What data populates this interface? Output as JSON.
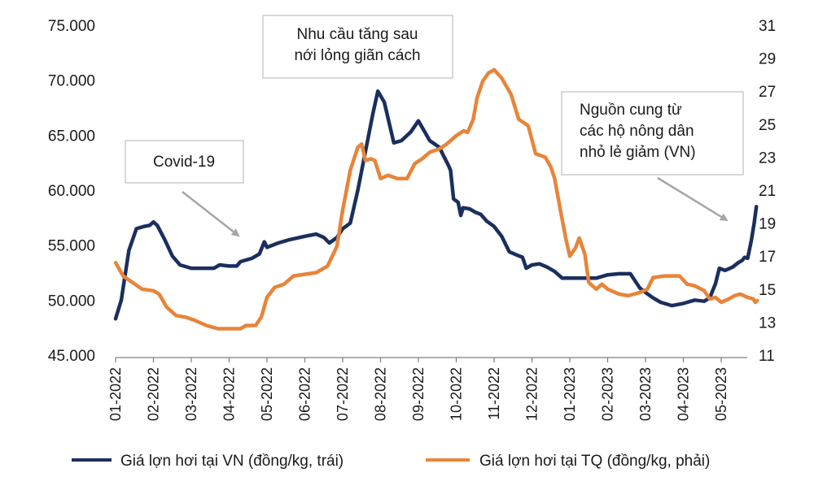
{
  "chart_data": {
    "type": "line",
    "title": "",
    "colors": {
      "vn": "#1b2f5e",
      "tq": "#e8843a",
      "annotation_border": "#bfbfbf",
      "arrow": "#a6a6a6"
    },
    "y_left": {
      "ylim": [
        45000,
        75000
      ],
      "ticks": [
        "75.000",
        "70.000",
        "65.000",
        "60.000",
        "55.000",
        "50.000",
        "45.000"
      ],
      "tick_values": [
        75000,
        70000,
        65000,
        60000,
        55000,
        50000,
        45000
      ]
    },
    "y_right": {
      "ylim": [
        11,
        31
      ],
      "ticks": [
        "31",
        "29",
        "27",
        "25",
        "23",
        "21",
        "19",
        "17",
        "15",
        "13",
        "11"
      ],
      "tick_values": [
        31,
        29,
        27,
        25,
        23,
        21,
        19,
        17,
        15,
        13,
        11
      ]
    },
    "x_ticks": [
      "01-2022",
      "02-2022",
      "03-2022",
      "04-2022",
      "05-2022",
      "06-2022",
      "07-2022",
      "08-2022",
      "09-2022",
      "10-2022",
      "11-2022",
      "12-2022",
      "01-2023",
      "02-2023",
      "03-2023",
      "04-2023",
      "05-2023"
    ],
    "series": [
      {
        "name": "Giá lợn hơi tại VN (đồng/kg, trái)",
        "axis": "left",
        "points": [
          [
            0,
            48300
          ],
          [
            0.15,
            50000
          ],
          [
            0.35,
            54500
          ],
          [
            0.55,
            56500
          ],
          [
            0.75,
            56700
          ],
          [
            0.9,
            56800
          ],
          [
            1.0,
            57100
          ],
          [
            1.1,
            56800
          ],
          [
            1.3,
            55500
          ],
          [
            1.5,
            54000
          ],
          [
            1.7,
            53200
          ],
          [
            2.0,
            52900
          ],
          [
            2.3,
            52900
          ],
          [
            2.6,
            52900
          ],
          [
            2.75,
            53200
          ],
          [
            3.0,
            53100
          ],
          [
            3.2,
            53100
          ],
          [
            3.3,
            53500
          ],
          [
            3.6,
            53800
          ],
          [
            3.8,
            54200
          ],
          [
            3.93,
            55300
          ],
          [
            4.0,
            54800
          ],
          [
            4.3,
            55200
          ],
          [
            4.6,
            55500
          ],
          [
            5.0,
            55800
          ],
          [
            5.3,
            56000
          ],
          [
            5.5,
            55700
          ],
          [
            5.65,
            55200
          ],
          [
            5.85,
            55700
          ],
          [
            6.0,
            56500
          ],
          [
            6.2,
            57000
          ],
          [
            6.4,
            60000
          ],
          [
            6.6,
            63500
          ],
          [
            6.8,
            67000
          ],
          [
            6.93,
            69000
          ],
          [
            7.1,
            68000
          ],
          [
            7.35,
            64300
          ],
          [
            7.55,
            64500
          ],
          [
            7.8,
            65300
          ],
          [
            8.0,
            66300
          ],
          [
            8.3,
            64500
          ],
          [
            8.55,
            63900
          ],
          [
            8.8,
            62200
          ],
          [
            8.85,
            61800
          ],
          [
            8.93,
            59200
          ],
          [
            9.05,
            58900
          ],
          [
            9.12,
            57700
          ],
          [
            9.18,
            58400
          ],
          [
            9.35,
            58300
          ],
          [
            9.5,
            58000
          ],
          [
            9.65,
            57800
          ],
          [
            9.8,
            57200
          ],
          [
            10.0,
            56700
          ],
          [
            10.2,
            55800
          ],
          [
            10.4,
            54400
          ],
          [
            10.6,
            54100
          ],
          [
            10.75,
            53900
          ],
          [
            10.85,
            52900
          ],
          [
            11.0,
            53200
          ],
          [
            11.2,
            53300
          ],
          [
            11.4,
            53000
          ],
          [
            11.6,
            52600
          ],
          [
            11.8,
            52000
          ],
          [
            12.0,
            52000
          ],
          [
            12.4,
            52000
          ],
          [
            12.7,
            52000
          ],
          [
            13.0,
            52300
          ],
          [
            13.3,
            52400
          ],
          [
            13.6,
            52400
          ],
          [
            13.85,
            51100
          ],
          [
            14.0,
            50700
          ],
          [
            14.2,
            50200
          ],
          [
            14.4,
            49800
          ],
          [
            14.7,
            49500
          ],
          [
            15.0,
            49700
          ],
          [
            15.3,
            50000
          ],
          [
            15.55,
            49900
          ],
          [
            15.7,
            50200
          ],
          [
            15.85,
            51500
          ],
          [
            15.95,
            52900
          ],
          [
            16.1,
            52700
          ],
          [
            16.3,
            53000
          ],
          [
            16.45,
            53400
          ],
          [
            16.55,
            53600
          ],
          [
            16.62,
            53900
          ],
          [
            16.7,
            53800
          ],
          [
            16.8,
            55500
          ],
          [
            16.87,
            57000
          ],
          [
            16.93,
            58500
          ]
        ]
      },
      {
        "name": "Giá lợn hơi tại TQ (đồng/kg, phải)",
        "axis": "right",
        "points": [
          [
            0,
            16.6
          ],
          [
            0.2,
            15.8
          ],
          [
            0.45,
            15.4
          ],
          [
            0.7,
            15.0
          ],
          [
            1.0,
            14.9
          ],
          [
            1.15,
            14.7
          ],
          [
            1.35,
            13.9
          ],
          [
            1.6,
            13.4
          ],
          [
            1.85,
            13.3
          ],
          [
            2.1,
            13.1
          ],
          [
            2.4,
            12.8
          ],
          [
            2.7,
            12.6
          ],
          [
            3.0,
            12.6
          ],
          [
            3.3,
            12.6
          ],
          [
            3.45,
            12.8
          ],
          [
            3.7,
            12.8
          ],
          [
            3.85,
            13.3
          ],
          [
            4.0,
            14.5
          ],
          [
            4.2,
            15.1
          ],
          [
            4.45,
            15.3
          ],
          [
            4.7,
            15.8
          ],
          [
            5.0,
            15.9
          ],
          [
            5.3,
            16.0
          ],
          [
            5.6,
            16.4
          ],
          [
            5.85,
            17.6
          ],
          [
            6.0,
            19.8
          ],
          [
            6.2,
            22.2
          ],
          [
            6.4,
            23.6
          ],
          [
            6.5,
            23.8
          ],
          [
            6.6,
            22.8
          ],
          [
            6.75,
            22.9
          ],
          [
            6.85,
            22.8
          ],
          [
            7.0,
            21.7
          ],
          [
            7.2,
            21.9
          ],
          [
            7.45,
            21.7
          ],
          [
            7.7,
            21.7
          ],
          [
            7.9,
            22.6
          ],
          [
            8.1,
            22.9
          ],
          [
            8.3,
            23.3
          ],
          [
            8.55,
            23.5
          ],
          [
            8.75,
            23.8
          ],
          [
            9.0,
            24.3
          ],
          [
            9.2,
            24.6
          ],
          [
            9.3,
            24.5
          ],
          [
            9.45,
            25.3
          ],
          [
            9.55,
            26.6
          ],
          [
            9.7,
            27.6
          ],
          [
            9.85,
            28.1
          ],
          [
            10.0,
            28.3
          ],
          [
            10.2,
            27.8
          ],
          [
            10.45,
            26.8
          ],
          [
            10.65,
            25.3
          ],
          [
            10.9,
            24.9
          ],
          [
            11.1,
            23.2
          ],
          [
            11.35,
            23.0
          ],
          [
            11.5,
            22.4
          ],
          [
            11.6,
            21.7
          ],
          [
            11.75,
            19.8
          ],
          [
            11.9,
            18.0
          ],
          [
            12.0,
            17.0
          ],
          [
            12.15,
            17.5
          ],
          [
            12.25,
            18.1
          ],
          [
            12.4,
            17.1
          ],
          [
            12.5,
            15.4
          ],
          [
            12.7,
            15.0
          ],
          [
            12.85,
            15.3
          ],
          [
            13.0,
            15.0
          ],
          [
            13.3,
            14.7
          ],
          [
            13.55,
            14.6
          ],
          [
            13.7,
            14.7
          ],
          [
            13.85,
            14.8
          ],
          [
            14.05,
            15.0
          ],
          [
            14.2,
            15.7
          ],
          [
            14.5,
            15.8
          ],
          [
            14.7,
            15.8
          ],
          [
            14.9,
            15.8
          ],
          [
            15.1,
            15.3
          ],
          [
            15.3,
            15.2
          ],
          [
            15.55,
            14.9
          ],
          [
            15.7,
            14.4
          ],
          [
            15.85,
            14.5
          ],
          [
            16.0,
            14.2
          ],
          [
            16.2,
            14.4
          ],
          [
            16.35,
            14.6
          ],
          [
            16.5,
            14.7
          ],
          [
            16.7,
            14.5
          ],
          [
            16.85,
            14.4
          ],
          [
            16.9,
            14.2
          ],
          [
            16.95,
            14.3
          ]
        ]
      }
    ],
    "annotations": [
      {
        "text": "Covid-19",
        "lines": [
          "Covid-19"
        ]
      },
      {
        "text": "Nhu cầu tăng sau nới lỏng giãn cách",
        "lines": [
          "Nhu cầu tăng sau",
          "nới lỏng giãn cách"
        ]
      },
      {
        "text": "Nguồn cung từ các hộ nông dân nhỏ lẻ giảm (VN)",
        "lines": [
          "Nguồn cung từ",
          "các hộ nông dân",
          "nhỏ lẻ giảm (VN)"
        ]
      }
    ],
    "legend": {
      "placement": "bottom",
      "items": [
        {
          "label": "Giá lợn hơi tại VN (đồng/kg, trái)",
          "series": 0
        },
        {
          "label": "Giá lợn hơi tại TQ (đồng/kg, phải)",
          "series": 1
        }
      ]
    },
    "grid": false
  }
}
